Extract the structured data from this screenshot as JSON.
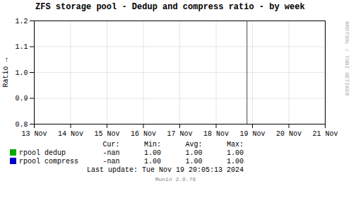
{
  "chart_data": {
    "type": "line",
    "title": "ZFS storage pool - Dedup and compress ratio - by week",
    "ylabel": "Ratio",
    "ylim": [
      0.8,
      1.2
    ],
    "yticks": [
      0.8,
      0.9,
      {
        "value": 1.0,
        "label": "1.0"
      },
      1.1,
      1.2
    ],
    "xlim": [
      0,
      8
    ],
    "xticks": [
      {
        "value": 0,
        "label": "13 Nov"
      },
      {
        "value": 1,
        "label": "14 Nov"
      },
      {
        "value": 2,
        "label": "15 Nov"
      },
      {
        "value": 3,
        "label": "16 Nov"
      },
      {
        "value": 4,
        "label": "17 Nov"
      },
      {
        "value": 5,
        "label": "18 Nov"
      },
      {
        "value": 6,
        "label": "19 Nov"
      },
      {
        "value": 7,
        "label": "20 Nov"
      },
      {
        "value": 8,
        "label": "21 Nov"
      }
    ],
    "grid": true,
    "vlines": [
      5.85
    ],
    "legend_columns": [
      "Cur:",
      "Min:",
      "Avg:",
      "Max:"
    ],
    "series": [
      {
        "name": "rpool dedup",
        "color": "#00aa00",
        "cur": "-nan",
        "min": "1.00",
        "avg": "1.00",
        "max": "1.00"
      },
      {
        "name": "rpool compress",
        "color": "#0000cc",
        "cur": "-nan",
        "min": "1.00",
        "avg": "1.00",
        "max": "1.00"
      }
    ],
    "annotations": [
      "Last update: Tue Nov 19 20:05:13 2024",
      "Munin 2.0.76",
      "RRDTOOL / TOBI OETIKER"
    ]
  }
}
